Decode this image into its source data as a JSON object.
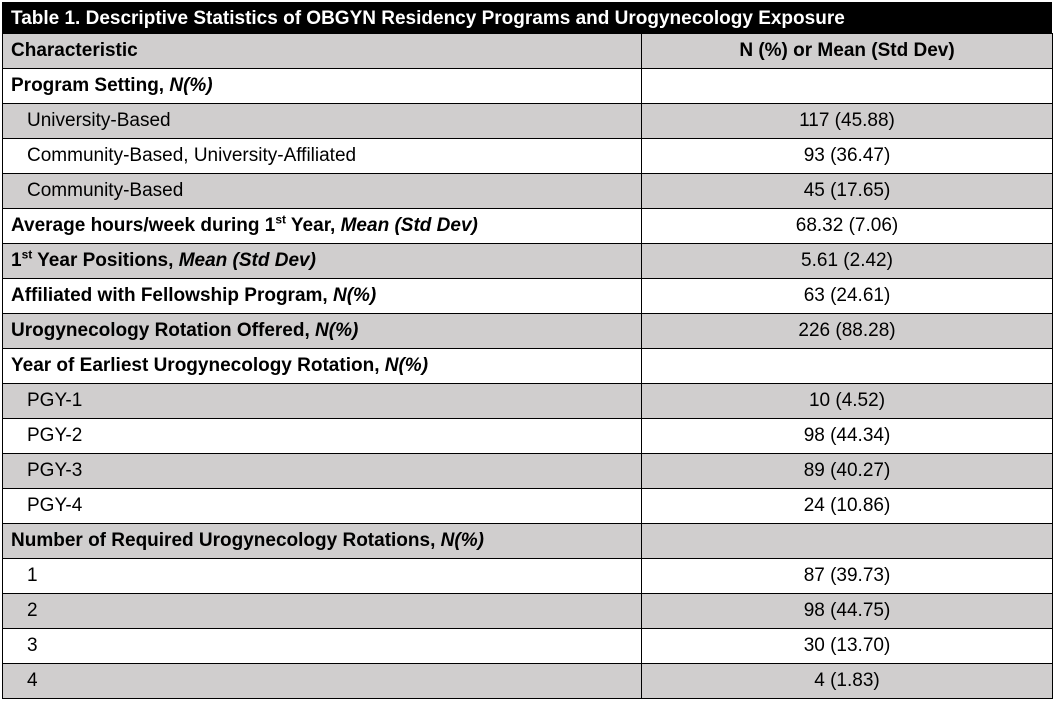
{
  "table": {
    "title": "Table 1. Descriptive Statistics of OBGYN Residency Programs and Urogynecology Exposure",
    "headers": [
      "Characteristic",
      "N (%) or Mean (Std Dev)"
    ],
    "rows": [
      {
        "label": "Program Setting, ",
        "unit": "N(%)",
        "value": "",
        "kind": "cat",
        "shade": false
      },
      {
        "label": "University-Based",
        "value": "117 (45.88)",
        "kind": "sub",
        "shade": true
      },
      {
        "label": "Community-Based, University-Affiliated",
        "value": "93 (36.47)",
        "kind": "sub",
        "shade": false
      },
      {
        "label": "Community-Based",
        "value": "45 (17.65)",
        "kind": "sub",
        "shade": true
      },
      {
        "label_pre": "Average hours/week during 1",
        "sup": "st",
        "label": " Year, ",
        "unit": "Mean (Std Dev)",
        "value": "68.32 (7.06)",
        "kind": "cat",
        "shade": false
      },
      {
        "label_pre": "1",
        "sup": "st",
        "label": " Year Positions, ",
        "unit": "Mean (Std Dev)",
        "value": "5.61 (2.42)",
        "kind": "cat",
        "shade": true
      },
      {
        "label": "Affiliated with Fellowship Program, ",
        "unit": "N(%)",
        "value": "63 (24.61)",
        "kind": "cat",
        "shade": false
      },
      {
        "label": "Urogynecology Rotation Offered, ",
        "unit": "N(%)",
        "value": "226 (88.28)",
        "kind": "cat",
        "shade": true
      },
      {
        "label": "Year of Earliest Urogynecology Rotation, ",
        "unit": "N(%)",
        "value": "",
        "kind": "cat",
        "shade": false
      },
      {
        "label": "PGY-1",
        "value": "10 (4.52)",
        "kind": "sub",
        "shade": true
      },
      {
        "label": "PGY-2",
        "value": "98 (44.34)",
        "kind": "sub",
        "shade": false
      },
      {
        "label": "PGY-3",
        "value": "89 (40.27)",
        "kind": "sub",
        "shade": true
      },
      {
        "label": "PGY-4",
        "value": "24 (10.86)",
        "kind": "sub",
        "shade": false
      },
      {
        "label": "Number of Required Urogynecology Rotations, ",
        "unit": "N(%)",
        "value": "",
        "kind": "cat",
        "shade": true
      },
      {
        "label": "1",
        "value": "87 (39.73)",
        "kind": "sub",
        "shade": false
      },
      {
        "label": "2",
        "value": "98 (44.75)",
        "kind": "sub",
        "shade": true
      },
      {
        "label": "3",
        "value": "30 (13.70)",
        "kind": "sub",
        "shade": false
      },
      {
        "label": "4",
        "value": "4 (1.83)",
        "kind": "sub",
        "shade": true
      }
    ]
  }
}
